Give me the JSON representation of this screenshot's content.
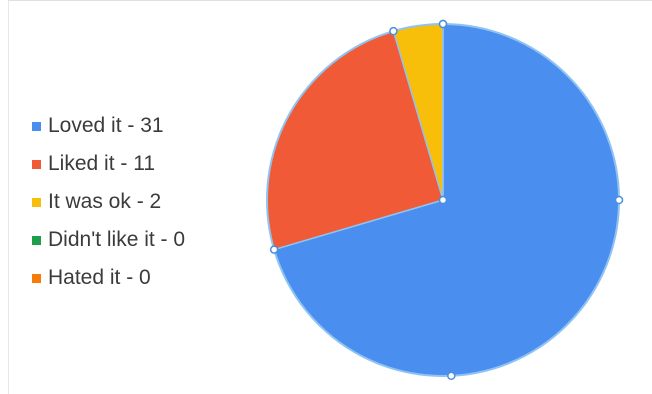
{
  "chart_data": {
    "type": "pie",
    "categories": [
      "Loved it",
      "Liked it",
      "It was ok",
      "Didn't like it",
      "Hated it"
    ],
    "values": [
      31,
      11,
      2,
      0,
      0
    ],
    "colors": [
      "#4a8ff0",
      "#f05a37",
      "#f7be0a",
      "#1e9e4a",
      "#f57b0a"
    ],
    "legend": [
      {
        "label": "Loved it - 31",
        "color": "#4a8ff0"
      },
      {
        "label": "Liked it - 11",
        "color": "#f05a37"
      },
      {
        "label": "It was ok - 2",
        "color": "#f7be0a"
      },
      {
        "label": "Didn't like it - 0",
        "color": "#1e9e4a"
      },
      {
        "label": "Hated it - 0",
        "color": "#f57b0a"
      }
    ],
    "legend_position": "left",
    "selected": true,
    "selection_color": "#8fc3f2"
  }
}
